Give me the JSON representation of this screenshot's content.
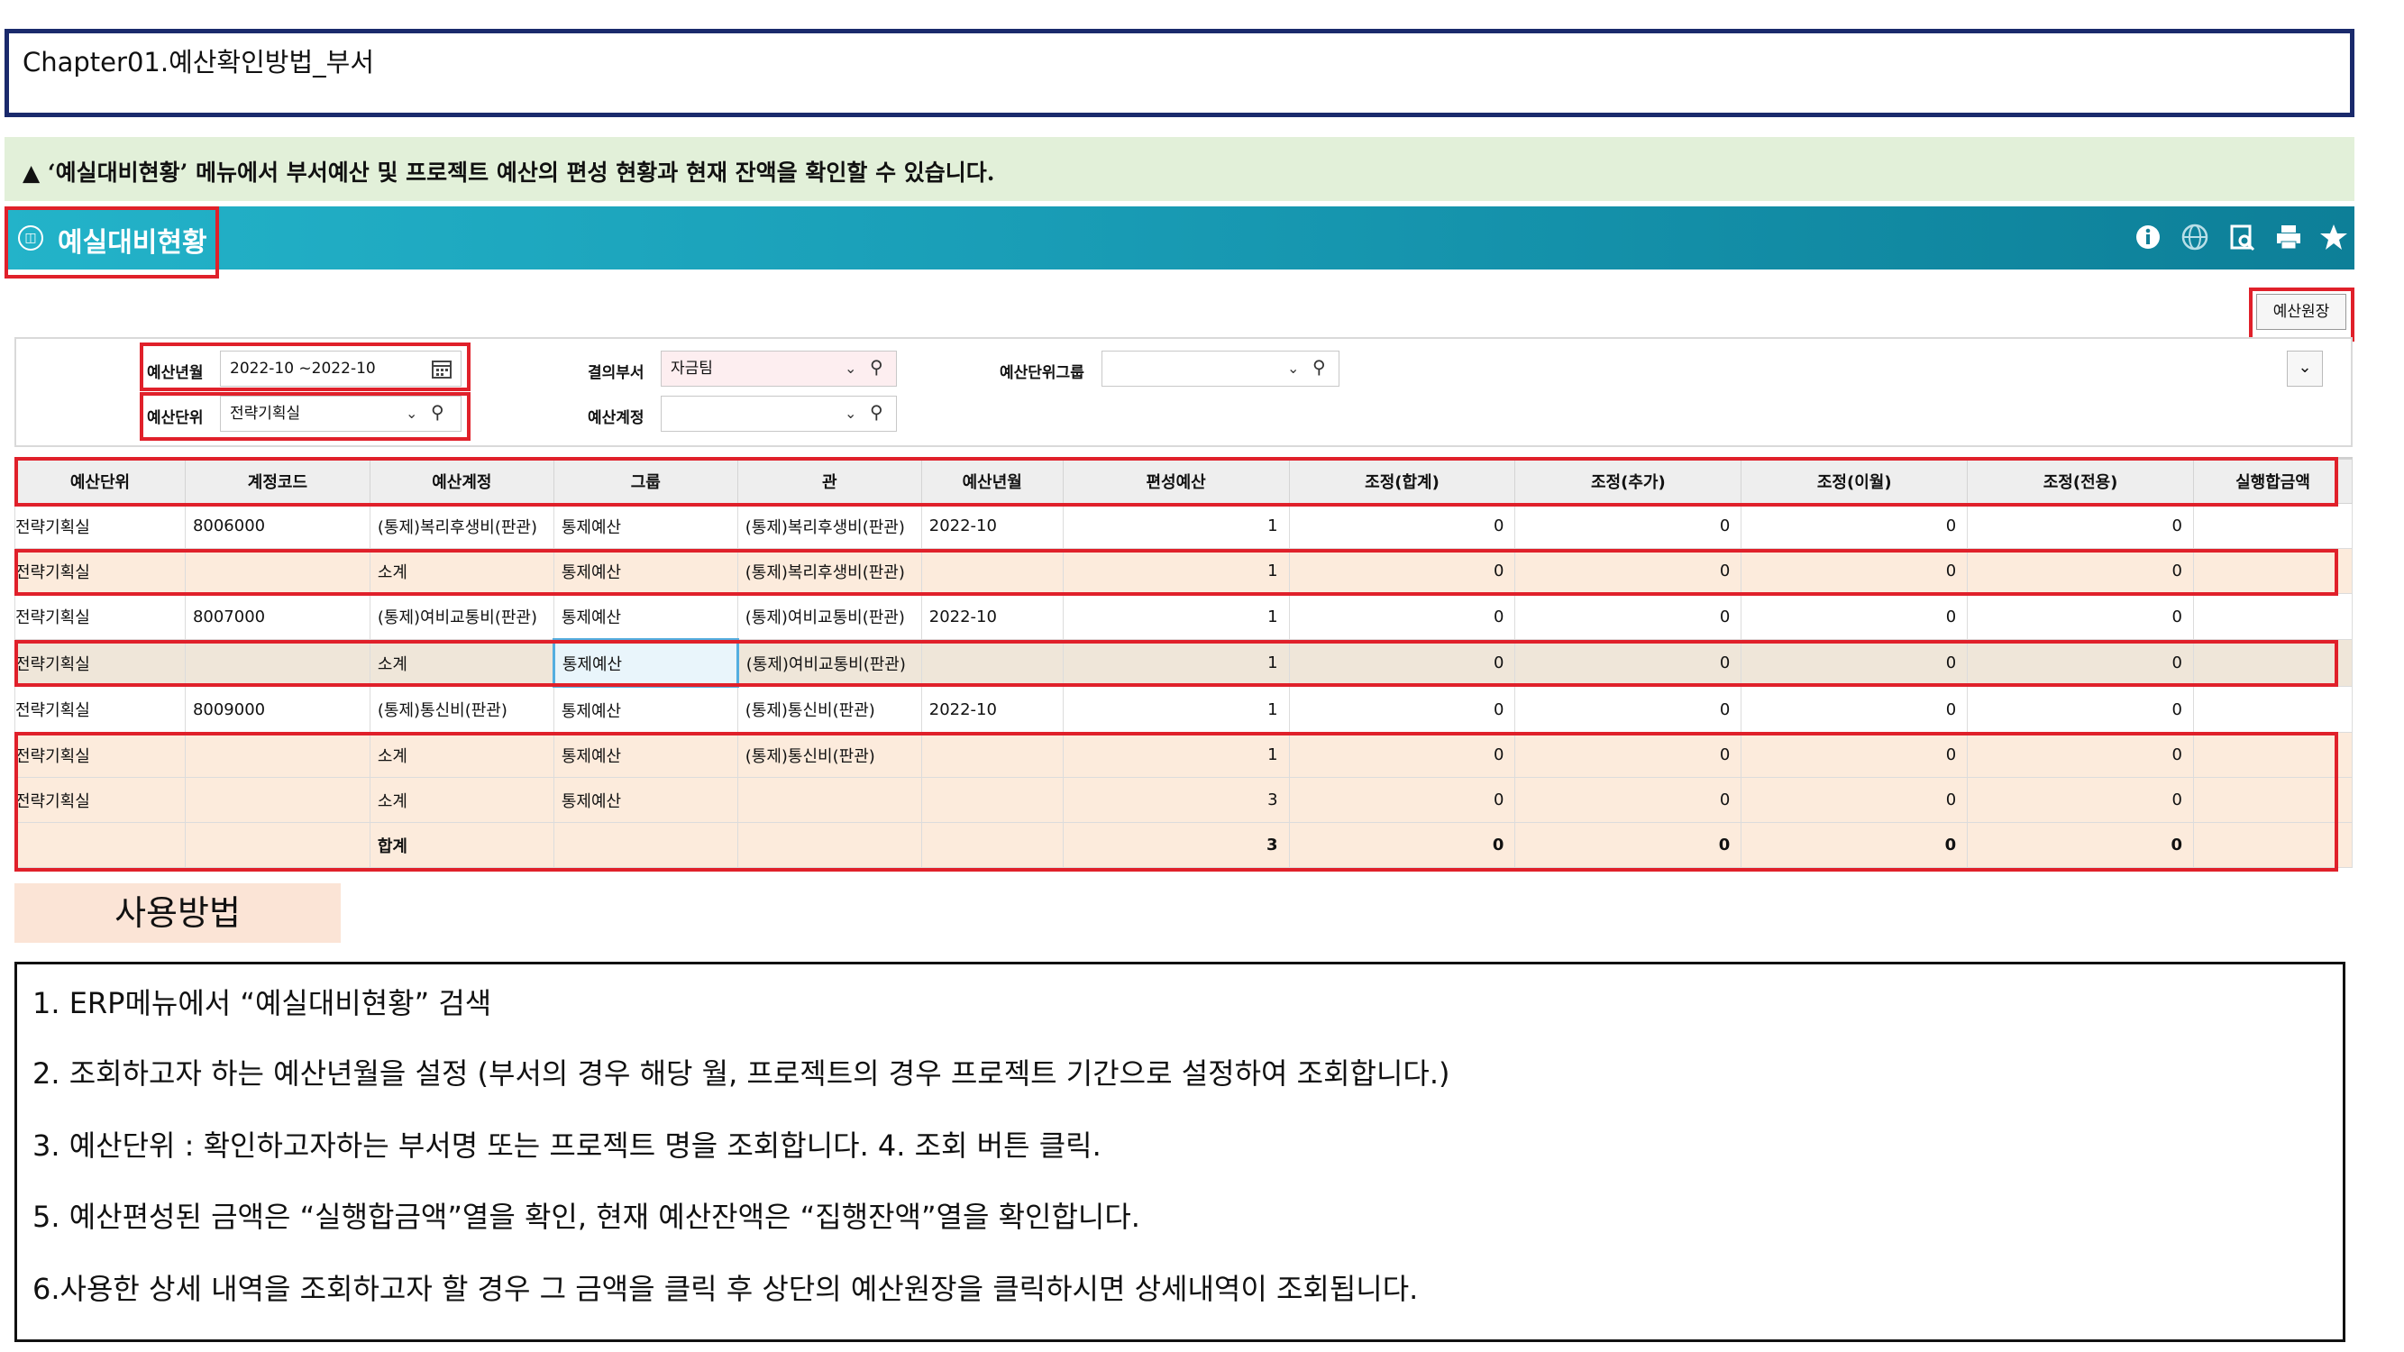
{
  "chapter": {
    "title": "Chapter01.예산확인방법_부서"
  },
  "notice": {
    "text": "▲ ‘예실대비현황’ 메뉴에서 부서예산 및 프로젝트 예산의 편성 현황과 현재 잔액을 확인할 수 있습니다."
  },
  "header": {
    "title": "예실대비현황",
    "icons": [
      "info-icon",
      "globe-icon",
      "preview-icon",
      "print-icon",
      "star-icon"
    ],
    "ledger_button": "예산원장"
  },
  "filters": {
    "budget_month_label": "예산년월",
    "budget_month_value": "2022-10 ~2022-10",
    "budget_unit_label": "예산단위",
    "budget_unit_value": "전략기획실",
    "dept_label": "결의부서",
    "dept_value": "자금팀",
    "account_label": "예산계정",
    "account_value": "",
    "group_label": "예산단위그룹",
    "group_value": ""
  },
  "table": {
    "columns": [
      "예산단위",
      "계정코드",
      "예산계정",
      "그룹",
      "관",
      "예산년월",
      "편성예산",
      "조정(합계)",
      "조정(추가)",
      "조정(이월)",
      "조정(전용)",
      "실행합금액"
    ],
    "rows": [
      [
        "전략기획실",
        "8006000",
        "(통제)복리후생비(판관)",
        "통제예산",
        "(통제)복리후생비(판관)",
        "2022-10",
        "1",
        "0",
        "0",
        "0",
        "0",
        ""
      ],
      [
        "전략기획실",
        "",
        "소계",
        "통제예산",
        "(통제)복리후생비(판관)",
        "",
        "1",
        "0",
        "0",
        "0",
        "0",
        ""
      ],
      [
        "전략기획실",
        "8007000",
        "(통제)여비교통비(판관)",
        "통제예산",
        "(통제)여비교통비(판관)",
        "2022-10",
        "1",
        "0",
        "0",
        "0",
        "0",
        ""
      ],
      [
        "전략기획실",
        "",
        "소계",
        "통제예산",
        "(통제)여비교통비(판관)",
        "",
        "1",
        "0",
        "0",
        "0",
        "0",
        ""
      ],
      [
        "전략기획실",
        "8009000",
        "(통제)통신비(판관)",
        "통제예산",
        "(통제)통신비(판관)",
        "2022-10",
        "1",
        "0",
        "0",
        "0",
        "0",
        ""
      ],
      [
        "전략기획실",
        "",
        "소계",
        "통제예산",
        "(통제)통신비(판관)",
        "",
        "1",
        "0",
        "0",
        "0",
        "0",
        ""
      ],
      [
        "전략기획실",
        "",
        "소계",
        "통제예산",
        "",
        "",
        "3",
        "0",
        "0",
        "0",
        "0",
        ""
      ],
      [
        "",
        "",
        "합계",
        "",
        "",
        "",
        "3",
        "0",
        "0",
        "0",
        "0",
        ""
      ]
    ]
  },
  "usage": {
    "label": "사용방법",
    "steps": [
      "1. ERP메뉴에서 “예실대비현황” 검색",
      "2. 조회하고자 하는 예산년월을 설정 (부서의 경우 해당 월, 프로젝트의 경우 프로젝트 기간으로 설정하여 조회합니다.)",
      "3. 예산단위 : 확인하고자하는 부서명 또는 프로젝트 명을 조회합니다. 4. 조회 버튼 클릭.",
      "5. 예산편성된 금액은 “실행합금액”열을 확인, 현재 예산잔액은 “집행잔액”열을 확인합니다.",
      "6.사용한 상세 내역을 조회하고자 할 경우 그 금액을 클릭 후 상단의 예산원장을 클릭하시면 상세내역이 조회됩니다."
    ]
  },
  "colors": {
    "highlight_red": "#e0202a",
    "header_teal": "#1a9fb8",
    "subtotal_bg": "#fcebdc"
  }
}
